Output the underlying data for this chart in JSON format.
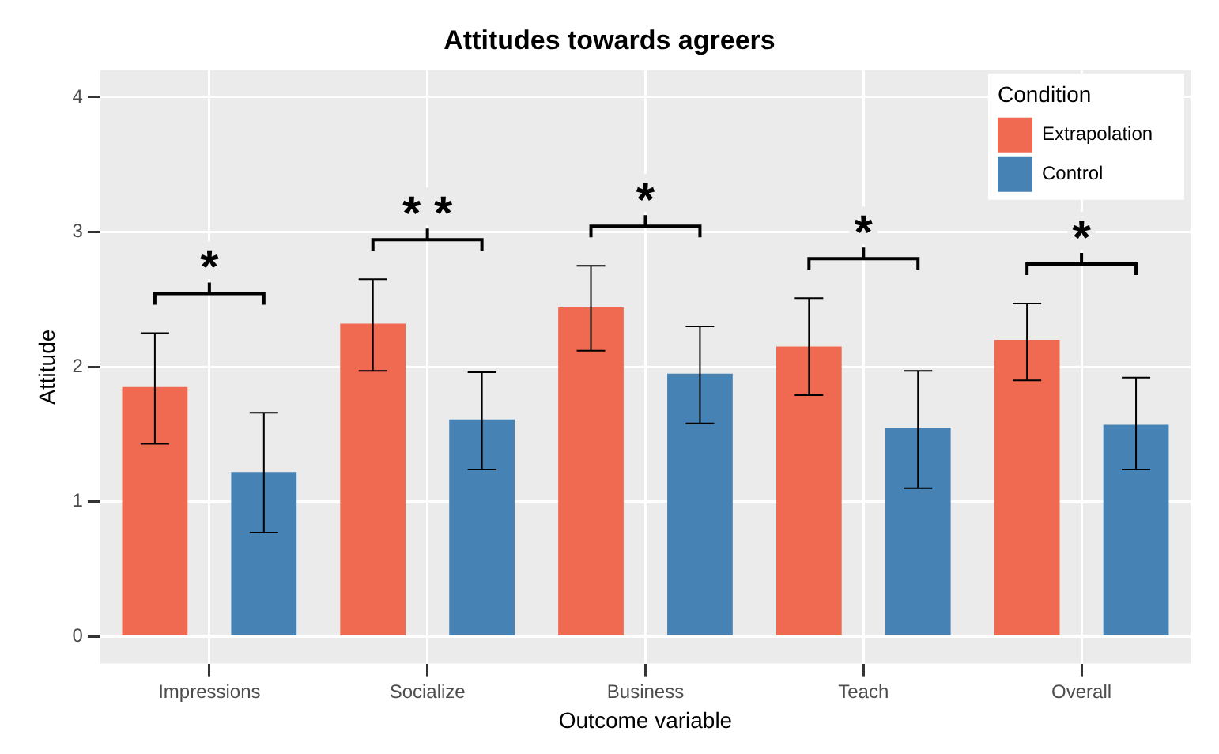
{
  "chart_data": {
    "type": "bar",
    "title": "Attitudes towards agreers",
    "xlabel": "Outcome variable",
    "ylabel": "Attitude",
    "legend_title": "Condition",
    "categories": [
      "Impressions",
      "Socialize",
      "Business",
      "Teach",
      "Overall"
    ],
    "series": [
      {
        "name": "Extrapolation",
        "color": "#ef6a50",
        "values": [
          1.85,
          2.32,
          2.44,
          2.15,
          2.2
        ],
        "errors": [
          [
            1.43,
            2.25
          ],
          [
            1.97,
            2.65
          ],
          [
            2.12,
            2.75
          ],
          [
            1.79,
            2.51
          ],
          [
            1.9,
            2.47
          ]
        ]
      },
      {
        "name": "Control",
        "color": "#4682b4",
        "values": [
          1.22,
          1.61,
          1.95,
          1.55,
          1.57
        ],
        "errors": [
          [
            0.77,
            1.66
          ],
          [
            1.24,
            1.96
          ],
          [
            1.58,
            2.3
          ],
          [
            1.1,
            1.97
          ],
          [
            1.24,
            1.92
          ]
        ]
      }
    ],
    "ylim": [
      -0.2,
      4.2
    ],
    "yticks": [
      0,
      1,
      2,
      3,
      4
    ],
    "grid": true,
    "legend": "top right",
    "annotations": [
      "*",
      "* *",
      "*",
      "*",
      "*"
    ]
  }
}
